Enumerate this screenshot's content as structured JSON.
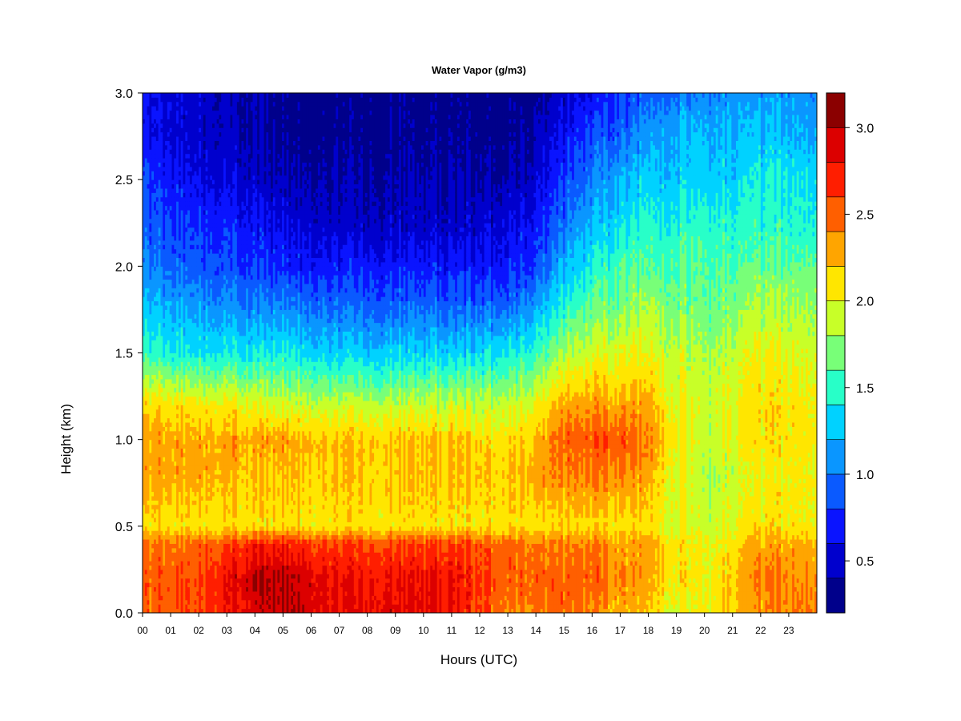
{
  "chart_data": {
    "type": "heatmap",
    "title": "Water Vapor (g/m3)",
    "xlabel": "Hours (UTC)",
    "ylabel": "Height (km)",
    "x_ticks": [
      "00",
      "01",
      "02",
      "03",
      "04",
      "05",
      "06",
      "07",
      "08",
      "09",
      "10",
      "11",
      "12",
      "13",
      "14",
      "15",
      "16",
      "17",
      "18",
      "19",
      "20",
      "21",
      "22",
      "23"
    ],
    "y_ticks": [
      "0.0",
      "0.5",
      "1.0",
      "1.5",
      "2.0",
      "2.5",
      "3.0"
    ],
    "xlim": [
      0,
      24
    ],
    "ylim": [
      0,
      3.0
    ],
    "colorbar": {
      "min": 0.2,
      "max": 3.2,
      "ticks": [
        "0.5",
        "1.0",
        "1.5",
        "2.0",
        "2.5",
        "3.0"
      ],
      "levels": [
        0.2,
        0.4,
        0.6,
        0.8,
        1.0,
        1.2,
        1.4,
        1.6,
        1.8,
        2.0,
        2.2,
        2.4,
        2.6,
        2.8,
        3.0,
        3.2
      ],
      "colors": [
        "#00008b",
        "#0000cd",
        "#0a14ff",
        "#0a5aff",
        "#0a96ff",
        "#00d2ff",
        "#28ffc8",
        "#78ff78",
        "#c8ff28",
        "#ffe600",
        "#ffa500",
        "#ff5f00",
        "#ff1e00",
        "#dc0000",
        "#8b0000"
      ]
    },
    "vertical_profiles": {
      "heights_km": [
        0.0,
        0.2,
        0.4,
        0.5,
        0.8,
        1.0,
        1.2,
        1.5,
        1.8,
        2.0,
        2.2,
        2.5,
        2.8,
        3.0
      ],
      "by_hour": [
        {
          "hour": 0,
          "values": [
            2.5,
            2.5,
            2.4,
            2.1,
            2.3,
            2.3,
            2.1,
            1.5,
            1.2,
            1.0,
            0.9,
            0.8,
            0.6,
            0.6
          ]
        },
        {
          "hour": 2,
          "values": [
            2.6,
            2.6,
            2.5,
            2.1,
            2.3,
            2.3,
            2.1,
            1.4,
            1.1,
            0.9,
            0.8,
            0.6,
            0.5,
            0.5
          ]
        },
        {
          "hour": 4,
          "values": [
            2.9,
            3.0,
            2.7,
            2.1,
            2.2,
            2.3,
            2.0,
            1.4,
            1.0,
            0.8,
            0.7,
            0.5,
            0.4,
            0.4
          ]
        },
        {
          "hour": 5,
          "values": [
            3.0,
            3.0,
            2.7,
            2.1,
            2.2,
            2.3,
            1.9,
            1.4,
            1.0,
            0.7,
            0.6,
            0.4,
            0.3,
            0.3
          ]
        },
        {
          "hour": 7,
          "values": [
            2.8,
            2.8,
            2.6,
            2.1,
            2.2,
            2.2,
            1.9,
            1.3,
            0.9,
            0.7,
            0.5,
            0.4,
            0.3,
            0.3
          ]
        },
        {
          "hour": 9,
          "values": [
            2.9,
            2.8,
            2.6,
            2.1,
            2.2,
            2.2,
            1.9,
            1.3,
            0.9,
            0.7,
            0.5,
            0.4,
            0.3,
            0.3
          ]
        },
        {
          "hour": 11,
          "values": [
            2.8,
            2.8,
            2.6,
            2.1,
            2.2,
            2.2,
            1.9,
            1.3,
            0.9,
            0.7,
            0.5,
            0.4,
            0.3,
            0.3
          ]
        },
        {
          "hour": 13,
          "values": [
            2.4,
            2.5,
            2.5,
            2.1,
            2.2,
            2.1,
            1.9,
            1.4,
            0.9,
            0.7,
            0.6,
            0.4,
            0.3,
            0.3
          ]
        },
        {
          "hour": 14,
          "values": [
            2.4,
            2.5,
            2.4,
            2.1,
            2.3,
            2.2,
            2.0,
            1.5,
            1.1,
            0.8,
            0.7,
            0.5,
            0.4,
            0.3
          ]
        },
        {
          "hour": 15,
          "values": [
            2.5,
            2.5,
            2.4,
            2.1,
            2.4,
            2.5,
            2.3,
            1.8,
            1.4,
            1.2,
            1.0,
            0.8,
            0.6,
            0.5
          ]
        },
        {
          "hour": 16,
          "values": [
            2.3,
            2.5,
            2.4,
            2.1,
            2.4,
            2.5,
            2.3,
            1.9,
            1.6,
            1.4,
            1.2,
            1.0,
            0.8,
            0.6
          ]
        },
        {
          "hour": 17,
          "values": [
            2.3,
            2.4,
            2.3,
            2.1,
            2.4,
            2.6,
            2.3,
            2.0,
            1.7,
            1.6,
            1.4,
            1.2,
            0.9,
            0.8
          ]
        },
        {
          "hour": 18,
          "values": [
            2.2,
            2.3,
            2.3,
            2.1,
            2.3,
            2.4,
            2.3,
            2.0,
            1.8,
            1.6,
            1.5,
            1.3,
            1.1,
            0.9
          ]
        },
        {
          "hour": 19,
          "values": [
            2.0,
            2.1,
            2.1,
            2.0,
            2.0,
            2.1,
            2.0,
            1.9,
            1.7,
            1.6,
            1.5,
            1.3,
            1.2,
            1.0
          ]
        },
        {
          "hour": 20,
          "values": [
            2.0,
            2.0,
            2.0,
            1.9,
            1.8,
            1.9,
            1.9,
            1.8,
            1.6,
            1.6,
            1.5,
            1.3,
            1.2,
            1.0
          ]
        },
        {
          "hour": 21,
          "values": [
            2.2,
            2.2,
            2.1,
            2.0,
            1.9,
            2.0,
            2.0,
            1.9,
            1.7,
            1.6,
            1.5,
            1.3,
            1.2,
            1.1
          ]
        },
        {
          "hour": 22,
          "values": [
            2.3,
            2.4,
            2.3,
            2.1,
            2.0,
            2.1,
            2.1,
            2.0,
            1.8,
            1.6,
            1.5,
            1.4,
            1.2,
            1.1
          ]
        },
        {
          "hour": 24,
          "values": [
            2.5,
            2.4,
            2.3,
            2.1,
            2.1,
            2.1,
            2.1,
            2.0,
            1.8,
            1.7,
            1.5,
            1.4,
            1.2,
            1.1
          ]
        }
      ]
    }
  }
}
